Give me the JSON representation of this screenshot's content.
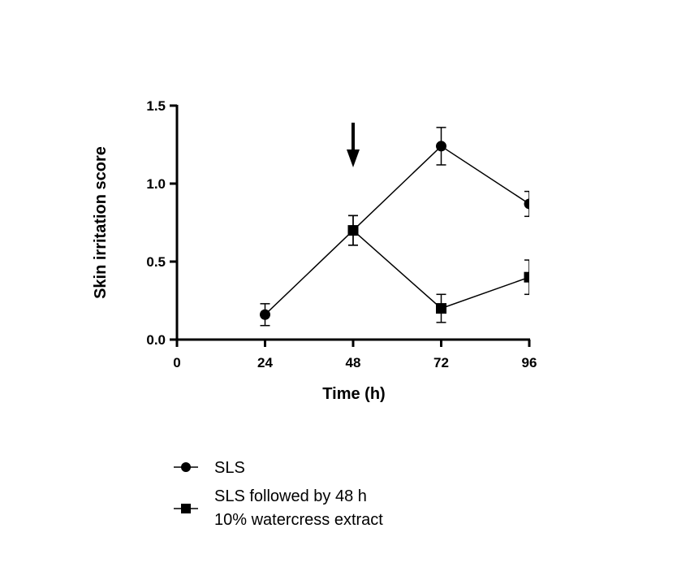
{
  "chart_data": {
    "type": "line",
    "title": "",
    "xlabel": "Time (h)",
    "ylabel": "Skin irritation score",
    "xlim": [
      0,
      96
    ],
    "ylim": [
      0,
      1.5
    ],
    "xticks": [
      "0",
      "24",
      "48",
      "72",
      "96"
    ],
    "yticks": [
      "0.0",
      "0.5",
      "1.0",
      "1.5"
    ],
    "grid": false,
    "legend_position": "bottom",
    "annotations": [
      {
        "type": "arrow-down",
        "x": 48
      }
    ],
    "series": [
      {
        "name": "SLS",
        "marker": "circle",
        "x": [
          24,
          48,
          72,
          96
        ],
        "y": [
          0.16,
          0.7,
          1.24,
          0.87
        ],
        "error": [
          0.07,
          0.095,
          0.12,
          0.08
        ]
      },
      {
        "name": "SLS followed by 48 h 10% watercress extract",
        "legend_lines": [
          "SLS followed by 48 h",
          "10% watercress extract"
        ],
        "marker": "square",
        "x": [
          48,
          72,
          96
        ],
        "y": [
          0.7,
          0.2,
          0.4
        ],
        "error": [
          0.095,
          0.09,
          0.11
        ]
      }
    ]
  }
}
